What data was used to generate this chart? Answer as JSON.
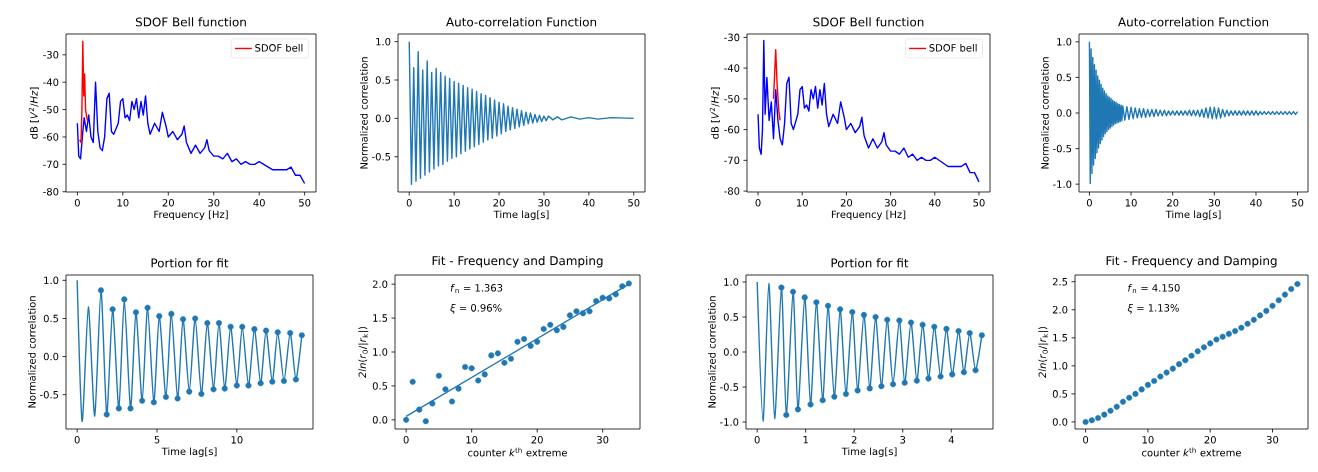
{
  "chart_data": [
    {
      "type": "line",
      "title": "SDOF Bell function",
      "xlabel": "Frequency [Hz]",
      "ylabel": "dB [*V*$^{2}$/*Hz*]",
      "xlim": [
        -2.5,
        52.5
      ],
      "ylim": [
        -80.1,
        -22.4
      ],
      "xticks": [
        0,
        10,
        20,
        30,
        40,
        50
      ],
      "yticks": [
        -80,
        -70,
        -60,
        -50,
        -40,
        -30
      ],
      "legend": "top right",
      "series": [
        {
          "color": "#0000ff",
          "x": [
            0,
            0.3,
            0.7,
            1.2,
            1.5,
            2,
            2.5,
            3,
            3.5,
            4,
            4.5,
            5,
            5.5,
            6,
            6.5,
            7,
            7.5,
            8,
            9,
            9.5,
            10,
            10.5,
            11,
            11.5,
            12,
            12.5,
            13,
            13.5,
            14,
            14.5,
            15,
            15.5,
            16,
            17,
            18,
            18.7,
            19.5,
            20,
            21,
            22,
            23,
            23.5,
            24,
            25,
            26,
            27,
            28,
            28.5,
            29,
            30,
            31,
            32,
            33,
            34,
            35,
            36,
            37,
            38,
            39,
            40,
            41,
            42,
            43,
            44,
            45,
            46,
            47,
            48,
            49,
            50
          ],
          "values": [
            -55,
            -67,
            -68,
            -58,
            -53,
            -58,
            -52,
            -60,
            -62,
            -40,
            -58,
            -64,
            -65,
            -60,
            -46,
            -44,
            -58,
            -59,
            -55,
            -47,
            -46,
            -53,
            -52,
            -54,
            -47,
            -50,
            -46,
            -53,
            -47,
            -52,
            -45,
            -55,
            -59,
            -55,
            -58,
            -51,
            -56,
            -60,
            -58,
            -61,
            -59,
            -56,
            -62,
            -66,
            -63,
            -66,
            -64,
            -61,
            -65,
            -67,
            -67,
            -68,
            -66,
            -69,
            -68,
            -70,
            -69,
            -70,
            -70,
            -69,
            -70,
            -71,
            -72,
            -72,
            -72,
            -72,
            -71,
            -74,
            -74,
            -77
          ]
        },
        {
          "name": "SDOF bell",
          "color": "#ff0000",
          "x": [
            0.5,
            0.8,
            1.0,
            1.2,
            1.4,
            1.6,
            1.8,
            2.0,
            2.2
          ],
          "values": [
            -61,
            -62,
            -50,
            -25,
            -45,
            -37,
            -50,
            -52,
            -54
          ]
        }
      ]
    },
    {
      "type": "line",
      "title": "Auto-correlation Function",
      "xlabel": "Time lag[s]",
      "ylabel": "Normalized correlation",
      "xlim": [
        -2.5,
        52.5
      ],
      "ylim": [
        -0.96,
        1.1
      ],
      "xticks": [
        0,
        10,
        20,
        30,
        40,
        50
      ],
      "yticks": [
        -0.5,
        {
          "value": 0,
          "label": "0.0"
        },
        0.5,
        {
          "value": 1,
          "label": "1.0"
        }
      ],
      "series": [
        {
          "color": "#1f77b4",
          "x": [
            0,
            0.5,
            1,
            1.5,
            2,
            2.5,
            3,
            3.5,
            4,
            4.5,
            5,
            5.5,
            6,
            6.5,
            7,
            7.5,
            8,
            8.5,
            9,
            9.5,
            10,
            10.5,
            11,
            11.5,
            12,
            12.5,
            13,
            13.5,
            14,
            14.5,
            15,
            15.5,
            16,
            16.5,
            17,
            17.5,
            18,
            18.5,
            19,
            19.5,
            20,
            20.5,
            21,
            21.5,
            22,
            22.5,
            23,
            23.5,
            24,
            24.5,
            25,
            25.5,
            26,
            26.5,
            27,
            27.5,
            28,
            28.5,
            29,
            29.5,
            30,
            30.5,
            31,
            32,
            33,
            34,
            36,
            38,
            40,
            42,
            45,
            50
          ],
          "values": [
            1.0,
            -0.86,
            0.66,
            -0.82,
            0.87,
            -0.78,
            0.63,
            -0.74,
            0.75,
            -0.7,
            0.6,
            -0.66,
            0.65,
            -0.62,
            0.6,
            -0.6,
            0.55,
            -0.56,
            0.52,
            -0.52,
            0.48,
            -0.5,
            0.46,
            -0.46,
            0.43,
            -0.43,
            0.4,
            -0.4,
            0.38,
            -0.37,
            0.35,
            -0.34,
            0.32,
            -0.31,
            0.3,
            -0.28,
            0.27,
            -0.26,
            0.24,
            -0.23,
            0.21,
            -0.2,
            0.19,
            -0.17,
            0.16,
            -0.15,
            0.14,
            -0.13,
            0.12,
            -0.11,
            0.1,
            -0.09,
            0.08,
            -0.07,
            0.07,
            -0.06,
            0.05,
            -0.05,
            0.04,
            -0.04,
            0.03,
            -0.03,
            0.03,
            -0.02,
            0.02,
            -0.02,
            0.02,
            -0.01,
            0.01,
            -0.01,
            0.01,
            0.0
          ]
        }
      ]
    },
    {
      "type": "line",
      "title": "SDOF Bell function",
      "xlabel": "Frequency [Hz]",
      "ylabel": "dB [*V*$^{2}$/*Hz*]",
      "xlim": [
        -2.5,
        52.5
      ],
      "ylim": [
        -80.3,
        -28.9
      ],
      "xticks": [
        0,
        10,
        20,
        30,
        40,
        50
      ],
      "yticks": [
        -80,
        -70,
        -60,
        -50,
        -40,
        -30
      ],
      "legend": "top right",
      "series": [
        {
          "color": "#0000ff",
          "x": [
            0,
            0.3,
            0.7,
            1,
            1.3,
            1.6,
            2,
            2.5,
            3,
            3.5,
            4,
            4.5,
            5,
            5.5,
            6,
            6.5,
            7,
            7.5,
            8,
            9,
            9.5,
            10,
            10.5,
            11,
            11.5,
            12,
            12.5,
            13,
            13.5,
            14,
            14.5,
            15,
            15.5,
            16,
            17,
            18,
            18.7,
            19.5,
            20,
            21,
            22,
            23,
            23.5,
            24,
            25,
            26,
            27,
            28,
            28.5,
            29,
            30,
            31,
            32,
            33,
            34,
            35,
            36,
            37,
            38,
            39,
            40,
            41,
            42,
            43,
            44,
            45,
            46,
            47,
            48,
            49,
            50
          ],
          "values": [
            -55,
            -66,
            -68,
            -60,
            -31,
            -55,
            -43,
            -57,
            -51,
            -63,
            -47,
            -57,
            -63,
            -65,
            -58,
            -45,
            -43,
            -58,
            -60,
            -55,
            -47,
            -46,
            -53,
            -52,
            -54,
            -47,
            -50,
            -46,
            -53,
            -47,
            -52,
            -45,
            -55,
            -59,
            -55,
            -58,
            -51,
            -56,
            -60,
            -58,
            -61,
            -59,
            -56,
            -62,
            -66,
            -63,
            -66,
            -64,
            -61,
            -65,
            -67,
            -67,
            -68,
            -66,
            -69,
            -68,
            -70,
            -69,
            -70,
            -70,
            -69,
            -70,
            -71,
            -72,
            -72,
            -72,
            -72,
            -71,
            -74,
            -74,
            -77
          ]
        },
        {
          "name": "SDOF bell",
          "color": "#ff0000",
          "x": [
            3.5,
            4.0,
            4.3,
            4.7,
            5.0
          ],
          "values": [
            -50,
            -34,
            -45,
            -54,
            -57
          ]
        }
      ]
    },
    {
      "type": "line",
      "title": "Auto-correlation Function",
      "xlabel": "Time lag[s]",
      "ylabel": "Normalized correlation",
      "xlim": [
        -2.5,
        52.5
      ],
      "ylim": [
        -1.11,
        1.11
      ],
      "xticks": [
        0,
        10,
        20,
        30,
        40,
        50
      ],
      "yticks": [
        {
          "value": -1,
          "label": "-1.0"
        },
        -0.5,
        {
          "value": 0,
          "label": "0.0"
        },
        0.5,
        {
          "value": 1,
          "label": "1.0"
        }
      ],
      "series": [
        {
          "color": "#1f77b4",
          "x": [
            0,
            0.2,
            0.4,
            0.6,
            0.8,
            1.0,
            1.2,
            1.4,
            1.6,
            1.8,
            2.0,
            2.2,
            2.4,
            2.6,
            2.8,
            3.0,
            3.2,
            3.4,
            3.6,
            3.8,
            4.0,
            4.2,
            4.4,
            4.6,
            4.8,
            5.0,
            5.2,
            5.4,
            5.6,
            5.8,
            6.0,
            6.2,
            6.4,
            6.6,
            6.8,
            7.0,
            7.2,
            7.4,
            7.6,
            7.8,
            8.0,
            8.5,
            9,
            9.5,
            10,
            10.5,
            11,
            11.5,
            12,
            12.5,
            13,
            13.5,
            14,
            14.5,
            15,
            15.5,
            16,
            16.5,
            17,
            17.5,
            18,
            18.5,
            19,
            19.5,
            20,
            20.5,
            21,
            21.5,
            22,
            22.5,
            23,
            23.5,
            24,
            24.5,
            25,
            25.5,
            26,
            26.5,
            27,
            27.5,
            28,
            28.5,
            29,
            29.5,
            30,
            30.5,
            31,
            31.5,
            32,
            32.5,
            33,
            33.5,
            34,
            34.5,
            35,
            35.5,
            36,
            36.5,
            37,
            37.5,
            38,
            38.5,
            39,
            39.5,
            40,
            40.5,
            41,
            41.5,
            42,
            42.5,
            43,
            43.5,
            44,
            44.5,
            45,
            45.5,
            46,
            46.5,
            47,
            47.5,
            48,
            48.5,
            49,
            49.5,
            50
          ],
          "values": [
            1.0,
            -0.99,
            0.9,
            -0.85,
            0.78,
            -0.73,
            0.68,
            -0.64,
            0.6,
            -0.56,
            0.52,
            -0.49,
            0.46,
            -0.43,
            0.4,
            -0.38,
            0.35,
            -0.33,
            0.31,
            -0.29,
            0.27,
            -0.26,
            0.24,
            -0.23,
            0.22,
            -0.21,
            0.2,
            -0.19,
            0.18,
            -0.17,
            0.16,
            -0.15,
            0.15,
            -0.14,
            0.13,
            -0.13,
            0.12,
            -0.12,
            0.11,
            -0.11,
            0.1,
            -0.1,
            0.09,
            -0.09,
            0.08,
            -0.08,
            0.07,
            -0.07,
            0.06,
            -0.06,
            0.06,
            -0.06,
            0.05,
            -0.05,
            0.05,
            -0.05,
            0.05,
            -0.04,
            0.04,
            -0.04,
            0.04,
            -0.04,
            0.03,
            -0.03,
            0.03,
            -0.03,
            0.03,
            -0.03,
            0.03,
            -0.03,
            0.03,
            -0.03,
            0.04,
            -0.04,
            0.04,
            -0.04,
            0.04,
            -0.05,
            0.05,
            -0.06,
            0.07,
            -0.07,
            0.08,
            -0.08,
            0.08,
            -0.08,
            0.07,
            -0.07,
            0.05,
            -0.05,
            0.04,
            -0.04,
            0.03,
            -0.03,
            0.03,
            -0.03,
            0.03,
            -0.03,
            0.03,
            -0.03,
            0.03,
            -0.03,
            0.03,
            -0.03,
            0.03,
            -0.03,
            0.02,
            -0.02,
            0.02,
            -0.02,
            0.02,
            -0.02,
            0.02,
            -0.02,
            0.02,
            -0.02,
            0.02,
            -0.02,
            0.02,
            -0.02,
            0.02,
            -0.02,
            0.02,
            -0.02,
            0.02
          ]
        }
      ]
    },
    {
      "type": "line",
      "title": "Portion for fit",
      "xlabel": "Time lag[s]",
      "ylabel": "Normalized correlation",
      "xlim": [
        -0.7,
        14.77
      ],
      "ylim": [
        -0.95,
        1.07
      ],
      "xticks": [
        0,
        5,
        10
      ],
      "yticks": [
        -0.5,
        {
          "value": 0,
          "label": "0.0"
        },
        0.5,
        {
          "value": 1,
          "label": "1.0"
        }
      ],
      "series": [
        {
          "color": "#1f77b4",
          "x": [
            0,
            0.31,
            0.7,
            1.1,
            1.49,
            1.85,
            2.22,
            2.61,
            2.95,
            3.34,
            3.68,
            4.07,
            4.41,
            4.8,
            5.14,
            5.56,
            5.9,
            6.29,
            6.63,
            7.02,
            7.39,
            7.78,
            8.15,
            8.54,
            8.88,
            9.24,
            9.61,
            10.0,
            10.34,
            10.73,
            11.1,
            11.49,
            11.83,
            12.22,
            12.56,
            12.95,
            13.34,
            13.7,
            14.07
          ],
          "values": [
            1.0,
            -0.85,
            0.65,
            -0.78,
            0.87,
            -0.76,
            0.62,
            -0.68,
            0.75,
            -0.68,
            0.58,
            -0.58,
            0.64,
            -0.6,
            0.53,
            -0.53,
            0.56,
            -0.55,
            0.49,
            -0.46,
            0.5,
            -0.49,
            0.44,
            -0.43,
            0.44,
            -0.42,
            0.39,
            -0.38,
            0.39,
            -0.38,
            0.36,
            -0.35,
            0.34,
            -0.33,
            0.32,
            -0.32,
            0.31,
            -0.3,
            0.28
          ]
        },
        {
          "type": "scatter",
          "marker": "circle",
          "color": "#1f77b4",
          "x": [
            1.49,
            1.85,
            2.22,
            2.61,
            2.95,
            3.34,
            3.68,
            4.07,
            4.41,
            4.8,
            5.14,
            5.56,
            5.9,
            6.29,
            6.63,
            7.02,
            7.39,
            7.78,
            8.15,
            8.54,
            8.88,
            9.24,
            9.61,
            10.0,
            10.34,
            10.73,
            11.1,
            11.49,
            11.83,
            12.22,
            12.56,
            12.95,
            13.34,
            13.7,
            14.07
          ],
          "values": [
            0.87,
            -0.76,
            0.62,
            -0.68,
            0.75,
            -0.68,
            0.58,
            -0.58,
            0.64,
            -0.6,
            0.53,
            -0.53,
            0.56,
            -0.55,
            0.49,
            -0.46,
            0.5,
            -0.49,
            0.44,
            -0.43,
            0.44,
            -0.42,
            0.39,
            -0.38,
            0.39,
            -0.38,
            0.36,
            -0.35,
            0.34,
            -0.33,
            0.32,
            -0.32,
            0.31,
            -0.3,
            0.28
          ]
        }
      ]
    },
    {
      "type": "scatter",
      "title": "Fit - Frequency and Damping",
      "xlabel": "counter *k*$^{th}$ extreme",
      "ylabel": "*2ln*(*r*$_{0}$/|*r*$_{k}$|)",
      "xlim": [
        -1.7,
        35.7
      ],
      "ylim": [
        -0.135,
        2.135
      ],
      "xticks": [
        0,
        10,
        20,
        30
      ],
      "yticks": [
        {
          "value": 0,
          "label": "0.0"
        },
        0.5,
        {
          "value": 1,
          "label": "1.0"
        },
        1.5,
        {
          "value": 2,
          "label": "2.0"
        }
      ],
      "annotations": [
        "*f*$_{n}$ = 1.363",
        "*ξ* = 0.96%"
      ],
      "series": [
        {
          "marker": "circle",
          "color": "#1f77b4",
          "x": [
            0,
            1,
            2,
            3,
            4,
            5,
            6,
            7,
            8,
            9,
            10,
            11,
            12,
            13,
            14,
            15,
            16,
            17,
            18,
            19,
            20,
            21,
            22,
            23,
            24,
            25,
            26,
            27,
            28,
            29,
            30,
            31,
            32,
            33,
            34
          ],
          "values": [
            0.0,
            0.56,
            0.15,
            -0.02,
            0.24,
            0.65,
            0.45,
            0.27,
            0.46,
            0.78,
            0.76,
            0.58,
            0.67,
            0.95,
            0.98,
            0.84,
            0.9,
            1.15,
            1.19,
            1.09,
            1.15,
            1.34,
            1.4,
            1.32,
            1.37,
            1.54,
            1.6,
            1.57,
            1.6,
            1.75,
            1.8,
            1.79,
            1.85,
            1.97,
            2.01
          ]
        },
        {
          "type": "line",
          "color": "#1f77b4",
          "x": [
            0,
            34
          ],
          "values": [
            0.05,
            2.0
          ]
        }
      ]
    },
    {
      "type": "line",
      "title": "Portion for fit",
      "xlabel": "Time lag[s]",
      "ylabel": "Normalized correlation",
      "xlim": [
        -0.23,
        4.86
      ],
      "ylim": [
        -1.1,
        1.1
      ],
      "xticks": [
        0,
        1,
        2,
        3,
        4
      ],
      "yticks": [
        {
          "value": -1,
          "label": "-1.0"
        },
        -0.5,
        {
          "value": 0,
          "label": "0.0"
        },
        0.5,
        {
          "value": 1,
          "label": "1.0"
        }
      ],
      "series": [
        {
          "color": "#1f77b4",
          "x": [
            0,
            0.12,
            0.24,
            0.36,
            0.5,
            0.6,
            0.74,
            0.84,
            0.98,
            1.1,
            1.22,
            1.35,
            1.46,
            1.59,
            1.71,
            1.83,
            1.96,
            2.07,
            2.2,
            2.32,
            2.44,
            2.56,
            2.68,
            2.8,
            2.93,
            3.04,
            3.17,
            3.29,
            3.41,
            3.53,
            3.65,
            3.78,
            3.9,
            4.02,
            4.15,
            4.26,
            4.38,
            4.5,
            4.63
          ],
          "values": [
            1.0,
            -0.99,
            0.98,
            -0.95,
            0.92,
            -0.9,
            0.86,
            -0.82,
            0.78,
            -0.75,
            0.71,
            -0.69,
            0.66,
            -0.64,
            0.61,
            -0.6,
            0.57,
            -0.55,
            0.53,
            -0.52,
            0.5,
            -0.49,
            0.46,
            -0.46,
            0.45,
            -0.44,
            0.42,
            -0.41,
            0.39,
            -0.38,
            0.36,
            -0.35,
            0.33,
            -0.32,
            0.3,
            -0.29,
            0.27,
            -0.26,
            0.24
          ]
        },
        {
          "type": "scatter",
          "marker": "circle",
          "color": "#1f77b4",
          "x": [
            0.5,
            0.6,
            0.74,
            0.84,
            0.98,
            1.1,
            1.22,
            1.35,
            1.46,
            1.59,
            1.71,
            1.83,
            1.96,
            2.07,
            2.2,
            2.32,
            2.44,
            2.56,
            2.68,
            2.8,
            2.93,
            3.04,
            3.17,
            3.29,
            3.41,
            3.53,
            3.65,
            3.78,
            3.9,
            4.02,
            4.15,
            4.26,
            4.38,
            4.5,
            4.63
          ],
          "values": [
            0.92,
            -0.9,
            0.86,
            -0.82,
            0.78,
            -0.75,
            0.71,
            -0.69,
            0.66,
            -0.64,
            0.61,
            -0.6,
            0.57,
            -0.55,
            0.53,
            -0.52,
            0.5,
            -0.49,
            0.46,
            -0.46,
            0.45,
            -0.44,
            0.42,
            -0.41,
            0.39,
            -0.38,
            0.36,
            -0.35,
            0.33,
            -0.32,
            0.3,
            -0.29,
            0.27,
            -0.26,
            0.24
          ]
        }
      ]
    },
    {
      "type": "scatter",
      "title": "Fit - Frequency and Damping",
      "xlabel": "counter *k*$^{th}$ extreme",
      "ylabel": "*2ln*(*r*$_{0}$/|*r*$_{k}$|)",
      "xlim": [
        -1.7,
        35.7
      ],
      "ylim": [
        -0.126,
        2.62
      ],
      "xticks": [
        0,
        10,
        20,
        30
      ],
      "yticks": [
        {
          "value": 0,
          "label": "0.0"
        },
        0.5,
        {
          "value": 1,
          "label": "1.0"
        },
        1.5,
        {
          "value": 2,
          "label": "2.0"
        },
        2.5
      ],
      "annotations": [
        "*f*$_{n}$ = 4.150",
        "*ξ* = 1.13%"
      ],
      "series": [
        {
          "marker": "circle",
          "color": "#1f77b4",
          "x": [
            0,
            1,
            2,
            3,
            4,
            5,
            6,
            7,
            8,
            9,
            10,
            11,
            12,
            13,
            14,
            15,
            16,
            17,
            18,
            19,
            20,
            21,
            22,
            23,
            24,
            25,
            26,
            27,
            28,
            29,
            30,
            31,
            32,
            33,
            34
          ],
          "values": [
            0.0,
            0.03,
            0.07,
            0.13,
            0.2,
            0.27,
            0.36,
            0.43,
            0.5,
            0.58,
            0.66,
            0.73,
            0.81,
            0.88,
            0.95,
            1.03,
            1.1,
            1.18,
            1.26,
            1.33,
            1.4,
            1.47,
            1.52,
            1.57,
            1.62,
            1.68,
            1.75,
            1.82,
            1.9,
            1.98,
            2.07,
            2.17,
            2.27,
            2.37,
            2.46
          ]
        }
      ]
    }
  ]
}
